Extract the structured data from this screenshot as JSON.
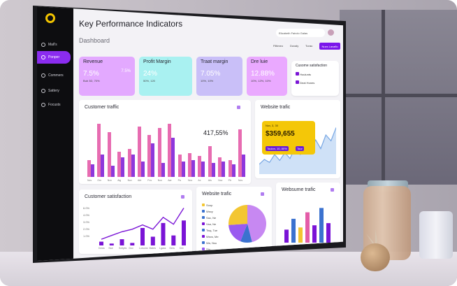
{
  "header": {
    "title": "Key Performance Indicators",
    "subtitle": "Dashboard",
    "user_pill": "Elizabeth Fairclo Galas",
    "filter1": "Filtimeo",
    "filter2": "Duvaly",
    "filter3": "Turau",
    "cta": "Nuvs Lavaflo"
  },
  "sidebar": {
    "items": [
      {
        "label": "Mall's"
      },
      {
        "label": "Ponper"
      },
      {
        "label": "Commers"
      },
      {
        "label": "Sattery"
      },
      {
        "label": "Focusts"
      }
    ]
  },
  "kpis": [
    {
      "label": "Revenue",
      "value": "7.5%",
      "side": "7.5%",
      "note": "Bub 3D, 70%",
      "color": "#e3a9ff"
    },
    {
      "label": "Profit Margin",
      "value": "24%",
      "side": "",
      "note": "50%, 120",
      "color": "#a9f1f1"
    },
    {
      "label": "Traat margin",
      "value": "7.05%",
      "side": "",
      "note": "10%, 10%",
      "color": "#c9bff8"
    },
    {
      "label": "Dre luie",
      "value": "12.88%",
      "side": "",
      "note": "10%, 12%, 10%",
      "color": "#eaa9ff"
    },
    {
      "label": "Cusome satisfaction",
      "value": "",
      "side": "",
      "note": "",
      "color": "#ffffff"
    }
  ],
  "customer_satisfaction_mini": {
    "rows": [
      {
        "label": "Houlunts"
      },
      {
        "label": "Deat Hones"
      }
    ]
  },
  "customer_traffic": {
    "title": "Customer traffic",
    "big_value": "417,55%",
    "xlabels": [
      "Nov",
      "Om",
      "Nov",
      "Aig",
      "Nov",
      "Abt",
      "Fov",
      "Nox",
      "Aar",
      "Pa",
      "Nov",
      "Ax",
      "Ats",
      "Nov",
      "Ptr",
      "Nov"
    ]
  },
  "website_traffic_top": {
    "title": "Website trafic",
    "tooltip_small": "Nov, 3, 30",
    "tooltip_big": "$359,655",
    "tooltip_badge1": "Toulon, 10, 80%",
    "tooltip_badge2": "Tour"
  },
  "customer_satisfaction": {
    "title": "Customer satisfaction",
    "yticks": [
      "6.0%",
      "4.0%",
      "3.0%",
      "2.0%",
      "1.0%"
    ],
    "xlabels": [
      "Dows",
      "Nse",
      "Sctlyes",
      "Dov",
      "Lorsons",
      "Mates",
      "Lgass",
      "Ders",
      "Dre"
    ]
  },
  "website_traffic_pie": {
    "title": "Website trafic",
    "legend": [
      "Soup",
      "Wsxy",
      "Sac, Ne",
      "Vsa, Ne",
      "Twq, Tue",
      "Wsxs, Me",
      "Wa, Nsu",
      "Sto"
    ]
  },
  "website_traffic_bars": {
    "title": "Websume trafic"
  },
  "chart_data": [
    {
      "type": "bar",
      "title": "Customer traffic",
      "categories": [
        "Nov",
        "Om",
        "Nov",
        "Aig",
        "Nov",
        "Abt",
        "Fov",
        "Nox",
        "Aar",
        "Pa",
        "Nov",
        "Ax",
        "Ats",
        "Nov",
        "Ptr",
        "Nov"
      ],
      "series": [
        {
          "values": [
            30,
            95,
            80,
            45,
            50,
            90,
            75,
            88,
            95,
            40,
            42,
            38,
            55,
            35,
            30,
            85
          ],
          "color": "#e45ca8"
        },
        {
          "values": [
            22,
            40,
            20,
            35,
            40,
            28,
            60,
            25,
            70,
            28,
            30,
            28,
            25,
            28,
            22,
            40
          ],
          "color": "#7a14d6"
        }
      ]
    },
    {
      "type": "area",
      "title": "Website trafic",
      "values": [
        20,
        30,
        24,
        40,
        28,
        44,
        32,
        55,
        40,
        60,
        48,
        70,
        52,
        80,
        68,
        95
      ]
    },
    {
      "type": "line",
      "title": "Customer satisfaction",
      "x": [
        "Dows",
        "Nse",
        "Sctlyes",
        "Dov",
        "Lorsons",
        "Mates",
        "Lgass",
        "Ders",
        "Dre"
      ],
      "values": [
        1.0,
        1.6,
        2.2,
        2.6,
        3.3,
        2.6,
        4.5,
        3.4,
        6.0
      ],
      "bars": [
        0.6,
        0.3,
        1.0,
        0.4,
        2.8,
        1.4,
        3.6,
        1.6,
        4.0
      ]
    },
    {
      "type": "pie",
      "title": "Website trafic",
      "values": [
        46,
        10,
        18,
        26
      ],
      "colors": [
        "#c788f2",
        "#3b72cf",
        "#9a5af0",
        "#f3c632"
      ]
    },
    {
      "type": "bar",
      "title": "Websume trafic",
      "values": [
        30,
        55,
        35,
        70,
        40,
        80,
        45
      ],
      "colors": [
        "#7a14d6",
        "#3b72cf",
        "#f3c632",
        "#e45ca8",
        "#7a14d6",
        "#3b72cf",
        "#7a14d6"
      ]
    }
  ]
}
